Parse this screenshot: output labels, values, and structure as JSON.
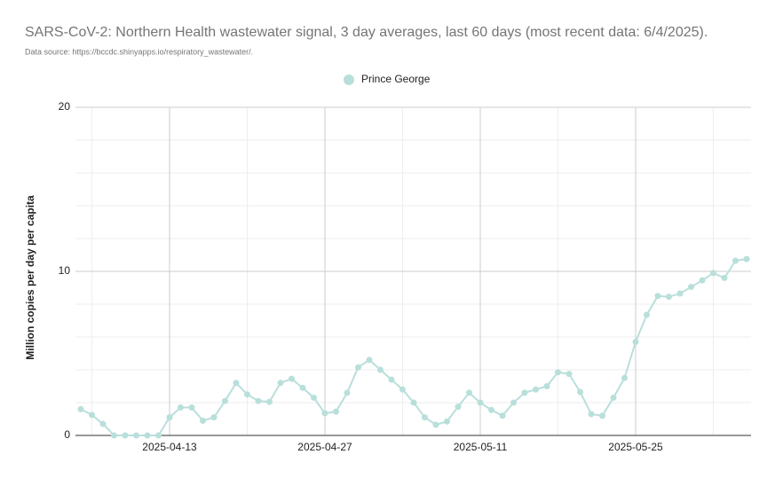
{
  "chart_data": {
    "type": "line",
    "title": "SARS-CoV-2: Northern Health wastewater signal, 3 day averages, last 60 days (most recent data: 6/4/2025).",
    "subtitle": "Data source: https://bccdc.shinyapps.io/respiratory_wastewater/.",
    "y_label": "Million copies per day per capita",
    "x": [
      "2025-04-05",
      "2025-04-06",
      "2025-04-07",
      "2025-04-08",
      "2025-04-09",
      "2025-04-10",
      "2025-04-11",
      "2025-04-12",
      "2025-04-13",
      "2025-04-14",
      "2025-04-15",
      "2025-04-16",
      "2025-04-17",
      "2025-04-18",
      "2025-04-19",
      "2025-04-20",
      "2025-04-21",
      "2025-04-22",
      "2025-04-23",
      "2025-04-24",
      "2025-04-25",
      "2025-04-26",
      "2025-04-27",
      "2025-04-28",
      "2025-04-29",
      "2025-04-30",
      "2025-05-01",
      "2025-05-02",
      "2025-05-03",
      "2025-05-04",
      "2025-05-05",
      "2025-05-06",
      "2025-05-07",
      "2025-05-08",
      "2025-05-09",
      "2025-05-10",
      "2025-05-11",
      "2025-05-12",
      "2025-05-13",
      "2025-05-14",
      "2025-05-15",
      "2025-05-16",
      "2025-05-17",
      "2025-05-18",
      "2025-05-19",
      "2025-05-20",
      "2025-05-21",
      "2025-05-22",
      "2025-05-23",
      "2025-05-24",
      "2025-05-25",
      "2025-05-26",
      "2025-05-27",
      "2025-05-28",
      "2025-05-29",
      "2025-05-30",
      "2025-05-31",
      "2025-06-01",
      "2025-06-02",
      "2025-06-03",
      "2025-06-04"
    ],
    "series": [
      {
        "name": "Prince George",
        "color": "#b9dfdb",
        "values": [
          1.6,
          1.25,
          0.7,
          0,
          0,
          0,
          0,
          0,
          1.1,
          1.7,
          1.7,
          0.9,
          1.1,
          2.1,
          3.2,
          2.5,
          2.1,
          2.05,
          3.2,
          3.45,
          2.9,
          2.3,
          1.35,
          1.45,
          2.6,
          4.15,
          4.6,
          4.0,
          3.4,
          2.8,
          2.0,
          1.1,
          0.65,
          0.85,
          1.75,
          2.6,
          2.0,
          1.55,
          1.2,
          2.0,
          2.6,
          2.8,
          3.0,
          3.85,
          3.75,
          2.65,
          1.3,
          1.2,
          2.3,
          3.5,
          5.7,
          7.35,
          8.5,
          8.45,
          8.65,
          9.05,
          9.45,
          9.9,
          9.6,
          10.65,
          10.75
        ]
      }
    ],
    "xlim": [
      "2025-04-05",
      "2025-06-04"
    ],
    "xticks": [
      "2025-04-13",
      "2025-04-27",
      "2025-05-11",
      "2025-05-25"
    ],
    "ylim": [
      0,
      20
    ],
    "yticks": [
      0,
      10,
      20
    ],
    "grid": true,
    "legend": "top"
  }
}
